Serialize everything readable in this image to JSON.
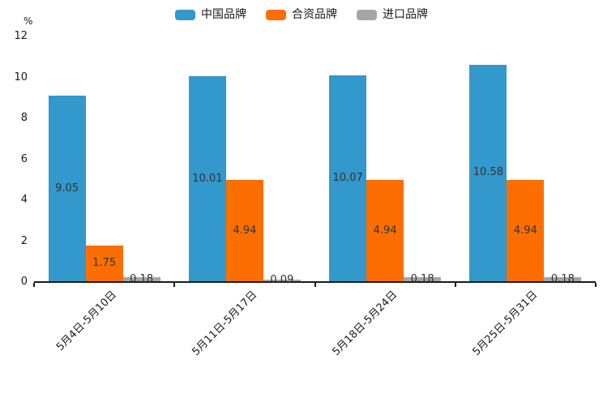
{
  "chart_data": {
    "type": "bar",
    "title": "",
    "ylabel_unit": "%",
    "categories": [
      "5月4日-5月10日",
      "5月11日-5月17日",
      "5月18日-5月24日",
      "5月25日-5月31日"
    ],
    "series": [
      {
        "name": "中国品牌",
        "color": "#3398cb",
        "values": [
          9.05,
          10.01,
          10.07,
          10.58
        ]
      },
      {
        "name": "合资品牌",
        "color": "#fd6e01",
        "values": [
          1.75,
          4.94,
          4.94,
          4.94
        ]
      },
      {
        "name": "进口品牌",
        "color": "#a6a6a6",
        "values": [
          0.18,
          0.09,
          0.18,
          0.18
        ]
      }
    ],
    "ylim": [
      0,
      12
    ],
    "yticks": [
      0,
      2,
      4,
      6,
      8,
      10,
      12
    ],
    "grid": false,
    "legend_position": "top",
    "value_labels_shown": true,
    "axis_color": "#1a1a1a",
    "value_label_color": "#333333"
  }
}
